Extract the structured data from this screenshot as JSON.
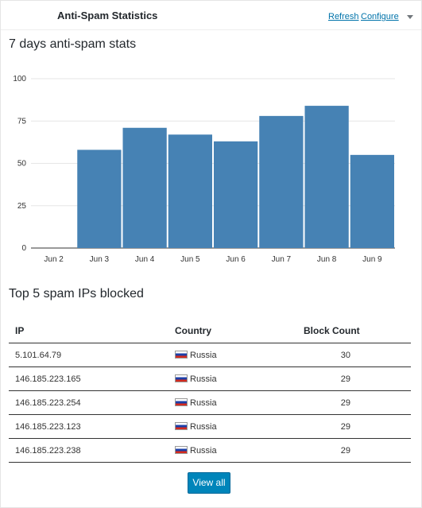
{
  "widget": {
    "title": "Anti-Spam Statistics",
    "refresh_label": "Refresh",
    "configure_label": "Configure"
  },
  "chart_section": {
    "title": "7 days anti-spam stats"
  },
  "chart_data": {
    "type": "bar",
    "categories": [
      "Jun 2",
      "Jun 3",
      "Jun 4",
      "Jun 5",
      "Jun 6",
      "Jun 7",
      "Jun 8",
      "Jun 9"
    ],
    "values": [
      0,
      58,
      71,
      67,
      63,
      78,
      84,
      55
    ],
    "ylim": [
      0,
      100
    ],
    "yticks": [
      0,
      25,
      50,
      75,
      100
    ],
    "grid": true,
    "bar_color": "#4682b4",
    "title": "",
    "xlabel": "",
    "ylabel": ""
  },
  "ip_section": {
    "title": "Top 5 spam IPs blocked",
    "columns": {
      "ip": "IP",
      "country": "Country",
      "count": "Block Count"
    },
    "rows": [
      {
        "ip": "5.101.64.79",
        "country": "Russia",
        "count": "30"
      },
      {
        "ip": "146.185.223.165",
        "country": "Russia",
        "count": "29"
      },
      {
        "ip": "146.185.223.254",
        "country": "Russia",
        "count": "29"
      },
      {
        "ip": "146.185.223.123",
        "country": "Russia",
        "count": "29"
      },
      {
        "ip": "146.185.223.238",
        "country": "Russia",
        "count": "29"
      }
    ],
    "view_all_label": "View all"
  },
  "colors": {
    "accent": "#0085ba",
    "link": "#0073aa"
  }
}
